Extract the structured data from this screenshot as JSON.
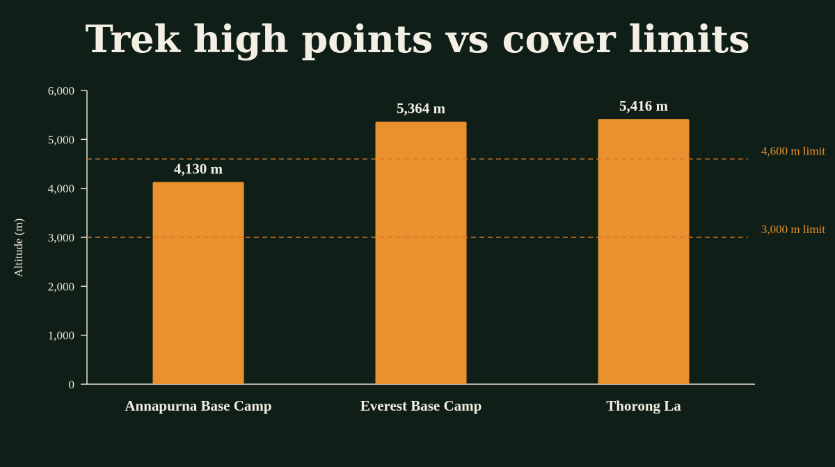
{
  "chart_data": {
    "type": "bar",
    "title": "Trek high points vs cover limits",
    "ylabel": "Altitude (m)",
    "xlabel": "",
    "ylim": [
      0,
      6000
    ],
    "yticks": [
      0,
      1000,
      2000,
      3000,
      4000,
      5000,
      6000
    ],
    "ytick_labels": [
      "0",
      "1,000",
      "2,000",
      "3,000",
      "4,000",
      "5,000",
      "6,000"
    ],
    "categories": [
      "Annapurna Base Camp",
      "Everest Base Camp",
      "Thorong La"
    ],
    "values": [
      4130,
      5364,
      5416
    ],
    "value_labels": [
      "4,130 m",
      "5,364 m",
      "5,416 m"
    ],
    "reference_lines": [
      {
        "value": 4600,
        "label": "4,600 m limit"
      },
      {
        "value": 3000,
        "label": "3,000 m limit"
      }
    ],
    "grid": false,
    "colors": {
      "background": "#0f1e16",
      "bar": "#e8912e",
      "reference_line": "#d9731f",
      "reference_label": "#e8912e",
      "text": "#f4efe4",
      "axis": "#e8e4da"
    }
  }
}
